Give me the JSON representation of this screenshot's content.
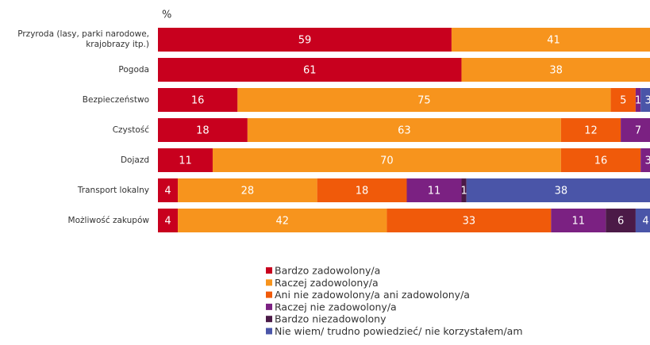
{
  "chart_data": {
    "type": "stacked_barh",
    "xlabel": "%",
    "categories": [
      "Przyroda (lasy, parki narodowe, krajobrazy itp.)",
      "Pogoda",
      "Bezpieczeństwo",
      "Czystość",
      "Dojazd",
      "Transport lokalny",
      "Możliwość zakupów"
    ],
    "series": [
      {
        "name": "Bardzo zadowolony/a",
        "color": "#c8001e",
        "values": [
          59,
          61,
          16,
          18,
          11,
          4,
          4
        ]
      },
      {
        "name": "Raczej zadowolony/a",
        "color": "#f7941d",
        "values": [
          41,
          38,
          75,
          63,
          70,
          28,
          42
        ]
      },
      {
        "name": "Ani nie zadowolony/a ani zadowolony/a",
        "color": "#f05a0a",
        "values": [
          null,
          null,
          5,
          12,
          16,
          18,
          33
        ]
      },
      {
        "name": "Raczej nie zadowolony/a",
        "color": "#7b2182",
        "values": [
          null,
          null,
          1,
          7,
          3,
          11,
          11
        ]
      },
      {
        "name": "Bardzo niezadowolony",
        "color": "#4b1a47",
        "values": [
          null,
          null,
          null,
          null,
          null,
          1,
          6
        ]
      },
      {
        "name": "Nie wiem/ trudno powiedzieć/ nie korzystałem/am",
        "color": "#4a55a8",
        "values": [
          null,
          null,
          3,
          null,
          null,
          38,
          4
        ]
      }
    ],
    "xlim": [
      0,
      100
    ]
  }
}
